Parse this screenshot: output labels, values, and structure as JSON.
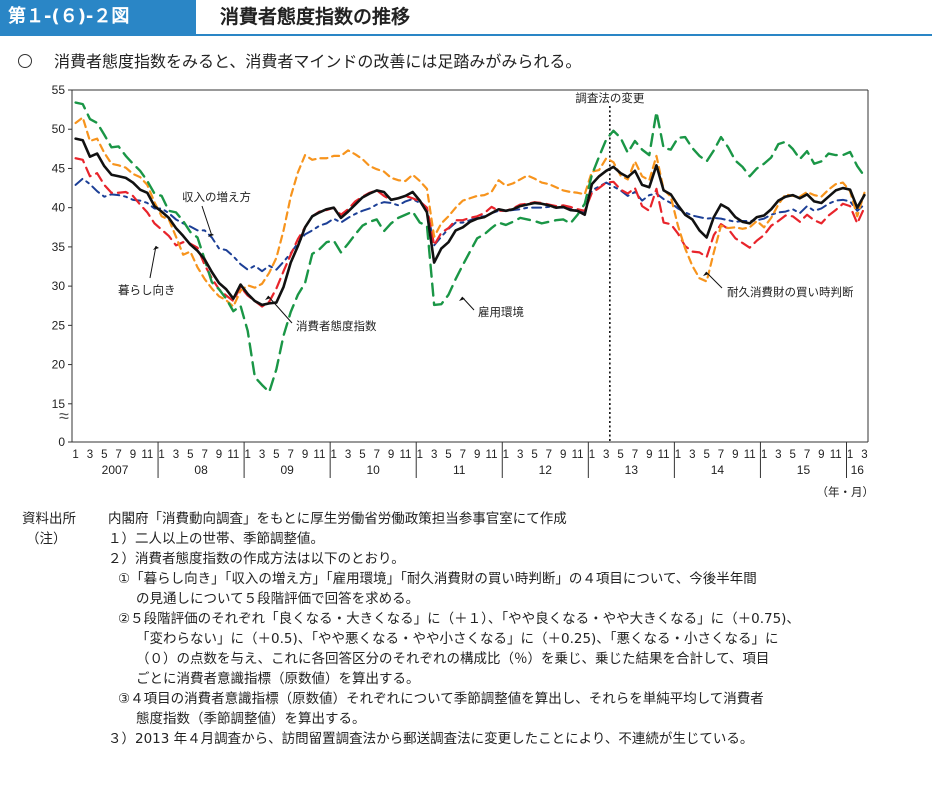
{
  "header": {
    "figure_number": "第１-(６)-２図",
    "figure_title": "消費者態度指数の推移"
  },
  "summary": "消費者態度指数をみると、消費者マインドの改善には足踏みがみられる。",
  "notes": {
    "source_label": "資料出所",
    "source_text": "内閣府「消費動向調査」をもとに厚生労働省労働政策担当参事官室にて作成",
    "note_label": "（注）",
    "n1": "１）二人以上の世帯、季節調整値。",
    "n2": "２）消費者態度指数の作成方法は以下のとおり。",
    "n2_1a": "①「暮らし向き」「収入の増え方」「雇用環境」「耐久消費財の買い時判断」の４項目について、今後半年間",
    "n2_1b": "の見通しについて５段階評価で回答を求める。",
    "n2_2a": "②５段階評価のそれぞれ「良くなる・大きくなる」に（＋１）、「やや良くなる・やや大きくなる」に（＋0.75)、",
    "n2_2b": "「変わらない」に（＋0.5)、「やや悪くなる・やや小さくなる」に（＋0.25)、「悪くなる・小さくなる」に",
    "n2_2c": "（０）の点数を与え、これに各回答区分のそれぞれの構成比（％）を乗じ、乗じた結果を合計して、項目",
    "n2_2d": "ごとに消費者意識指標（原数値）を算出する。",
    "n2_3a": "③４項目の消費者意識指標（原数値）それぞれについて季節調整値を算出し、それらを単純平均して消費者",
    "n2_3b": "態度指数（季節調整値）を算出する。",
    "n3": "３）2013 年４月調査から、訪問留置調査法から郵送調査法に変更したことにより、不連続が生じている。"
  },
  "chart_data": {
    "type": "line",
    "yticks": [
      0,
      15,
      20,
      25,
      30,
      35,
      40,
      45,
      50,
      55
    ],
    "ylim": [
      0,
      55
    ],
    "axis_break": "≈",
    "month_ticks": [
      "1",
      "3",
      "5",
      "7",
      "9",
      "11"
    ],
    "years": [
      "2007",
      "08",
      "09",
      "10",
      "11",
      "12",
      "13",
      "14",
      "15",
      "16"
    ],
    "last_year_months": [
      "1",
      "3"
    ],
    "unit_label": "（年・月）",
    "x_start": "2007-01",
    "x_end": "2016-03",
    "survey_change": {
      "month": "2013-04",
      "label": "調査法の変更"
    },
    "annotations": {
      "income": "収入の増え方",
      "living": "暮らし向き",
      "composite": "消費者態度指数",
      "employment": "雇用環境",
      "durables": "耐久消費財の買い時判断"
    },
    "colors": {
      "composite": "#111111",
      "living": "#e8242b",
      "income": "#1c3f96",
      "employment": "#1a9646",
      "durables": "#f7941d"
    },
    "series": [
      {
        "key": "composite",
        "values": [
          48.8,
          48.6,
          46.5,
          46.9,
          45.3,
          44.2,
          44.0,
          43.8,
          43.2,
          42.3,
          41.9,
          40.2,
          39.5,
          38.7,
          37.4,
          36.4,
          35.3,
          34.5,
          33.4,
          31.8,
          30.4,
          29.6,
          28.4,
          30.2,
          29.0,
          28.1,
          27.6,
          27.8,
          27.9,
          29.9,
          33.0,
          35.1,
          37.5,
          38.9,
          39.4,
          39.8,
          40.0,
          38.7,
          39.5,
          40.4,
          41.3,
          41.8,
          42.2,
          42.0,
          41.0,
          41.2,
          41.5,
          42.0,
          40.9,
          39.4,
          33.0,
          34.8,
          35.6,
          37.1,
          37.5,
          38.2,
          38.6,
          38.8,
          39.3,
          39.8,
          39.6,
          39.8,
          40.2,
          40.4,
          40.6,
          40.5,
          40.3,
          40.0,
          40.1,
          39.7,
          39.6,
          39.1,
          43.0,
          44.0,
          44.7,
          45.2,
          44.4,
          43.9,
          44.7,
          42.9,
          42.6,
          45.4,
          42.2,
          41.7,
          40.3,
          39.1,
          38.5,
          37.1,
          36.2,
          38.8,
          40.4,
          39.9,
          38.8,
          38.2,
          38.0,
          38.8,
          39.0,
          39.8,
          40.9,
          41.4,
          41.6,
          41.2,
          41.7,
          40.8,
          40.6,
          41.4,
          42.2,
          42.5,
          42.3,
          40.0,
          41.6
        ]
      },
      {
        "key": "living",
        "values": [
          46.3,
          46.1,
          44.0,
          44.4,
          42.9,
          41.9,
          41.9,
          42.0,
          41.5,
          40.4,
          39.4,
          38.0,
          37.2,
          36.4,
          35.2,
          35.6,
          35.4,
          34.9,
          32.7,
          31.0,
          29.6,
          28.8,
          28.1,
          29.9,
          28.8,
          28.1,
          27.4,
          28.0,
          29.7,
          31.9,
          34.0,
          36.0,
          37.5,
          38.9,
          39.5,
          39.7,
          40.0,
          39.1,
          39.8,
          40.8,
          41.4,
          41.9,
          42.2,
          41.5,
          41.0,
          41.2,
          41.5,
          41.2,
          40.8,
          40.0,
          35.2,
          36.8,
          37.4,
          38.4,
          38.4,
          38.7,
          38.9,
          39.3,
          40.1,
          39.6,
          39.6,
          39.9,
          40.4,
          40.5,
          40.7,
          40.6,
          40.4,
          40.2,
          40.3,
          40.1,
          39.8,
          39.6,
          41.9,
          42.5,
          43.2,
          43.3,
          42.3,
          41.8,
          42.5,
          40.2,
          39.6,
          42.4,
          38.1,
          37.9,
          36.7,
          35.1,
          34.4,
          34.3,
          33.7,
          36.5,
          37.9,
          37.3,
          36.1,
          35.5,
          34.9,
          35.8,
          36.5,
          37.7,
          38.3,
          39.0,
          38.9,
          38.2,
          39.1,
          38.4,
          38.0,
          39.0,
          39.7,
          40.5,
          40.2,
          38.0,
          40.0
        ]
      },
      {
        "key": "income",
        "values": [
          42.9,
          43.7,
          43.0,
          42.1,
          41.4,
          41.7,
          41.6,
          41.4,
          41.0,
          40.9,
          40.6,
          39.9,
          39.9,
          39.3,
          38.5,
          38.0,
          37.6,
          37.1,
          37.1,
          36.2,
          34.8,
          34.6,
          33.8,
          32.8,
          32.1,
          32.6,
          31.9,
          32.6,
          32.1,
          33.1,
          34.2,
          35.5,
          36.6,
          37.1,
          37.7,
          38.0,
          38.6,
          38.1,
          38.7,
          39.2,
          39.6,
          39.9,
          40.4,
          40.7,
          40.6,
          40.3,
          40.8,
          41.1,
          40.6,
          39.9,
          35.2,
          36.3,
          37.3,
          38.1,
          38.1,
          38.4,
          38.8,
          38.9,
          39.3,
          39.6,
          39.6,
          39.7,
          39.8,
          40.0,
          40.0,
          40.0,
          40.1,
          40.0,
          40.0,
          39.9,
          39.6,
          39.4,
          42.2,
          42.7,
          43.2,
          42.7,
          42.2,
          41.5,
          42.0,
          40.9,
          41.6,
          41.8,
          41.1,
          40.6,
          39.9,
          39.4,
          39.0,
          38.8,
          38.6,
          38.7,
          38.6,
          38.4,
          38.2,
          38.3,
          38.3,
          38.4,
          38.6,
          39.1,
          39.4,
          39.5,
          39.8,
          39.3,
          40.2,
          39.6,
          39.9,
          40.5,
          40.9,
          41.0,
          40.8,
          39.6,
          40.4
        ]
      },
      {
        "key": "employment",
        "values": [
          53.4,
          53.2,
          51.3,
          50.8,
          49.3,
          47.7,
          47.8,
          46.6,
          45.6,
          44.7,
          43.4,
          41.8,
          41.5,
          39.6,
          39.4,
          38.3,
          36.9,
          36.2,
          33.4,
          30.5,
          29.6,
          28.4,
          26.8,
          27.5,
          24.3,
          18.4,
          17.4,
          16.5,
          19.4,
          23.7,
          26.7,
          28.9,
          30.4,
          34.1,
          34.7,
          35.6,
          35.8,
          34.3,
          35.4,
          36.6,
          37.7,
          38.2,
          38.5,
          37.0,
          38.0,
          38.7,
          39.1,
          39.5,
          38.1,
          37.7,
          27.6,
          27.7,
          28.9,
          30.9,
          32.7,
          34.4,
          36.1,
          36.6,
          37.4,
          38.1,
          37.8,
          38.2,
          38.7,
          38.5,
          38.3,
          38.0,
          38.2,
          38.4,
          38.5,
          38.0,
          39.1,
          40.5,
          44.2,
          46.5,
          48.7,
          49.8,
          48.9,
          47.0,
          48.5,
          47.4,
          46.7,
          52.2,
          47.6,
          47.4,
          48.9,
          49.0,
          47.6,
          46.6,
          45.9,
          47.3,
          49.0,
          47.7,
          46.0,
          45.2,
          44.0,
          45.0,
          45.6,
          46.4,
          48.1,
          48.4,
          47.5,
          46.2,
          47.2,
          45.6,
          45.9,
          46.9,
          46.7,
          46.7,
          47.1,
          45.3,
          44.0
        ]
      },
      {
        "key": "durables",
        "values": [
          50.8,
          51.5,
          48.5,
          48.8,
          47.0,
          45.6,
          45.4,
          45.1,
          44.3,
          43.9,
          42.9,
          40.7,
          38.9,
          38.5,
          36.3,
          34.0,
          34.4,
          32.4,
          30.9,
          29.7,
          28.7,
          28.2,
          27.4,
          29.4,
          30.1,
          29.8,
          30.3,
          31.7,
          33.6,
          37.1,
          41.4,
          44.5,
          46.7,
          46.1,
          46.3,
          46.3,
          46.6,
          46.6,
          47.3,
          46.8,
          46.2,
          45.3,
          44.9,
          44.6,
          43.8,
          43.5,
          43.4,
          44.2,
          43.4,
          42.4,
          36.3,
          38.0,
          38.9,
          40.0,
          40.9,
          41.2,
          41.5,
          41.6,
          42.0,
          43.5,
          42.8,
          43.1,
          43.6,
          44.1,
          43.7,
          43.2,
          43.0,
          42.6,
          42.2,
          42.0,
          41.9,
          41.7,
          44.6,
          44.8,
          46.3,
          45.8,
          44.1,
          43.6,
          45.9,
          44.0,
          43.5,
          46.6,
          42.3,
          41.4,
          37.7,
          34.8,
          32.6,
          31.0,
          30.6,
          34.3,
          37.7,
          37.4,
          37.5,
          37.3,
          37.5,
          38.3,
          37.5,
          38.7,
          40.4,
          41.7,
          41.5,
          41.4,
          42.0,
          41.6,
          41.4,
          42.3,
          43.0,
          43.2,
          42.1,
          38.9,
          41.9
        ]
      }
    ]
  }
}
